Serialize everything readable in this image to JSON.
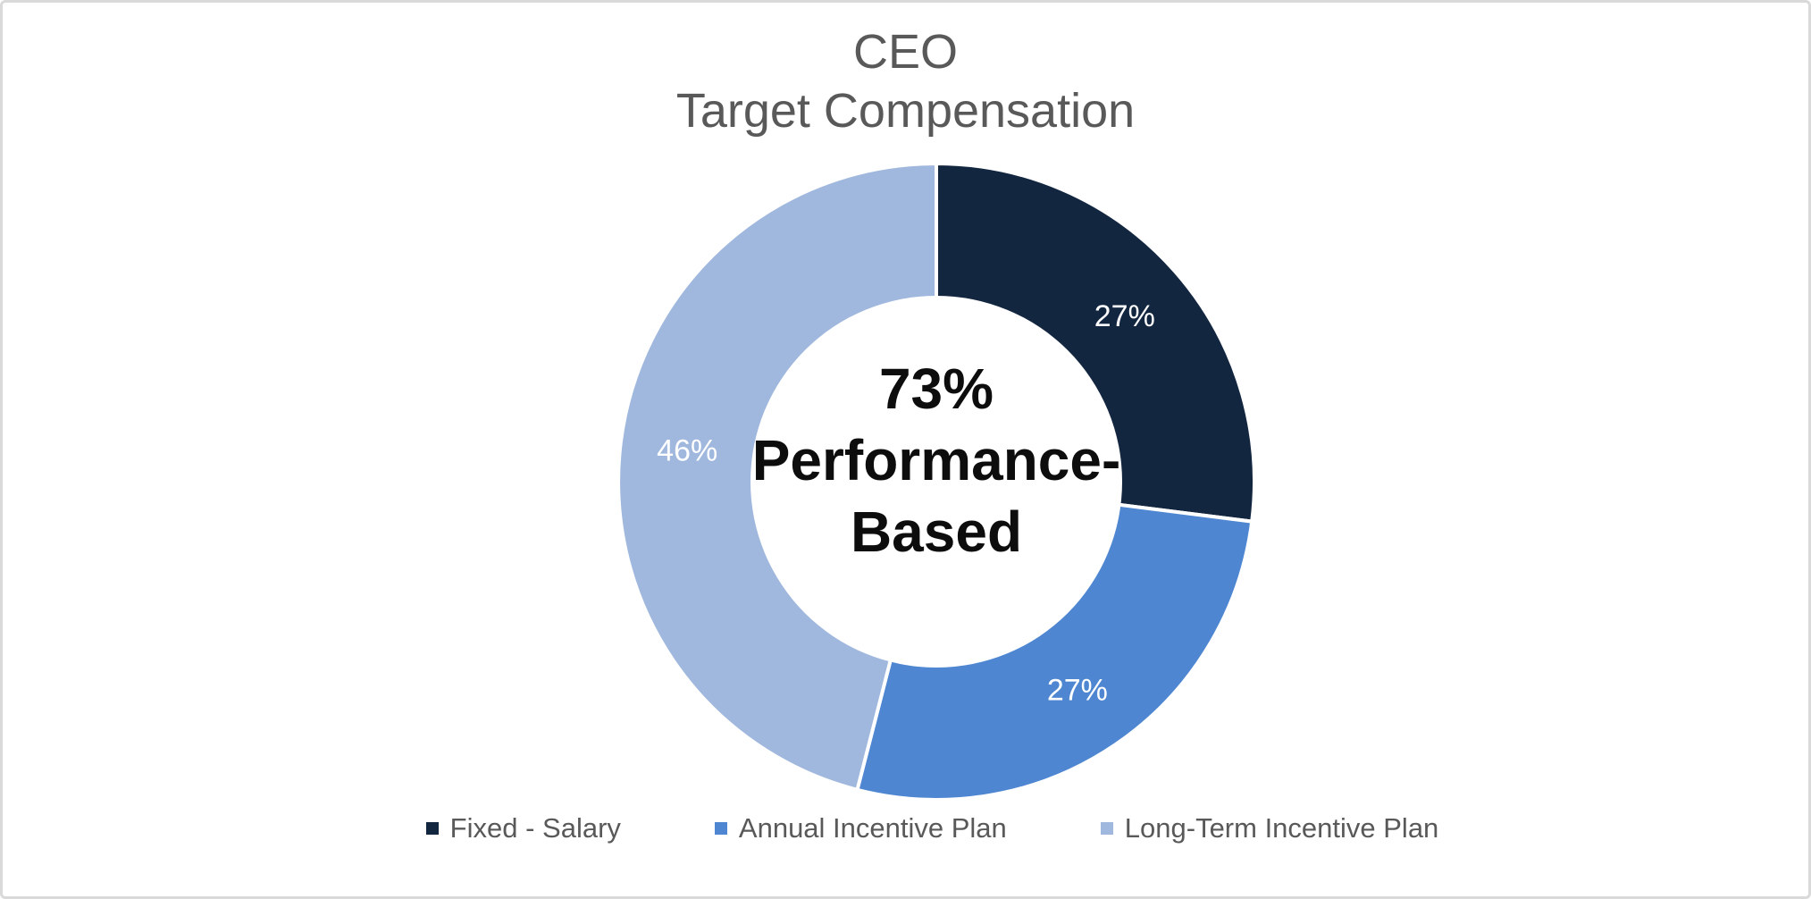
{
  "frame": {
    "background_color": "#FFFFFF",
    "border_color": "#D9D9D9"
  },
  "title": {
    "lines": [
      "CEO",
      "Target Compensation"
    ],
    "color": "#595959"
  },
  "center_label": {
    "lines": [
      "73%",
      "Performance-",
      "Based"
    ],
    "color": "#0D0D0D"
  },
  "chart_data": {
    "type": "pie",
    "subtype": "donut",
    "title": "CEO Target Compensation",
    "categories": [
      "Fixed - Salary",
      "Annual Incentive Plan",
      "Long-Term Incentive Plan"
    ],
    "values": [
      27,
      27,
      46
    ],
    "value_labels": [
      "27%",
      "27%",
      "46%"
    ],
    "colors": [
      "#132640",
      "#4E86D2",
      "#A0B8DE"
    ],
    "value_label_color": "#FFFFFF",
    "center_text": "73% Performance-Based",
    "start_angle_deg": 0,
    "direction": "clockwise",
    "hole_ratio": 0.585,
    "separator_color": "#FFFFFF",
    "legend_position": "bottom"
  },
  "legend": {
    "items": [
      {
        "label": "Fixed - Salary",
        "color": "#132640"
      },
      {
        "label": "Annual Incentive Plan",
        "color": "#4E86D2"
      },
      {
        "label": "Long-Term Incentive Plan",
        "color": "#A0B8DE"
      }
    ],
    "text_color": "#595959"
  }
}
